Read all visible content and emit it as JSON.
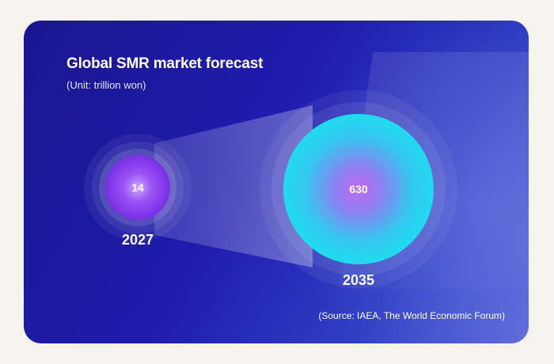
{
  "chart_data": {
    "type": "bubble",
    "title": "Global SMR market forecast",
    "subtitle": "(Unit: trillion won)",
    "points": [
      {
        "label": "2027",
        "value": 14
      },
      {
        "label": "2035",
        "value": 630
      }
    ],
    "source": "(Source: IAEA, The World Economic Forum)"
  },
  "colors": {
    "background": "#1f1cae",
    "small_bubble": "#8b3cf0",
    "large_bubble": "#19d7ee",
    "text": "#ffffff"
  }
}
